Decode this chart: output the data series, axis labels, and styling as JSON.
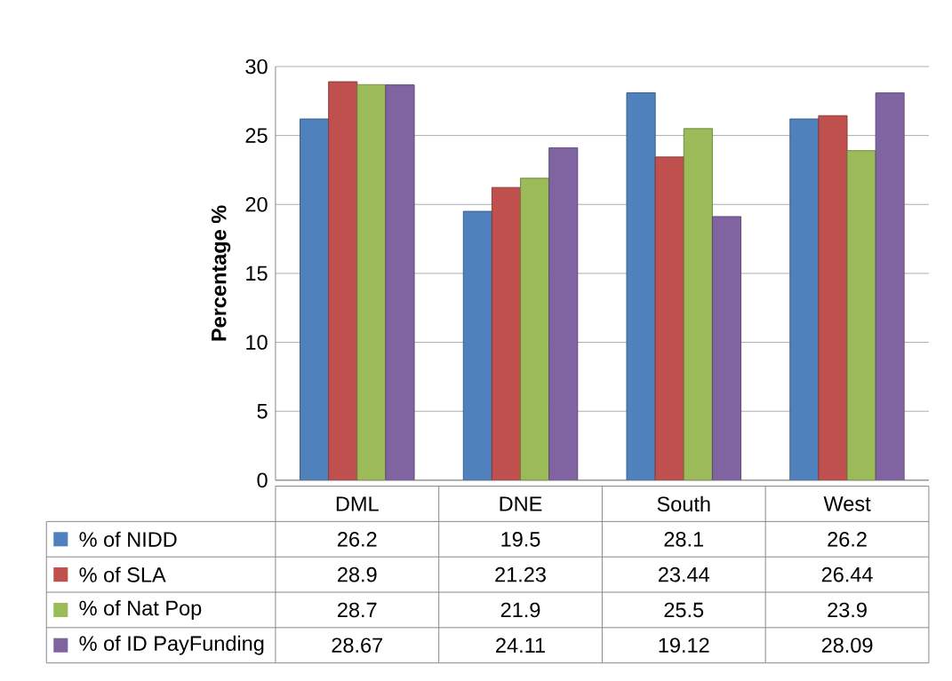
{
  "chart_data": {
    "type": "bar",
    "ylabel": "Percentage %",
    "categories": [
      "DML",
      "DNE",
      "South",
      "West"
    ],
    "series": [
      {
        "name": "% of NIDD",
        "color": "#4f81bd",
        "values": [
          26.2,
          19.5,
          28.1,
          26.2
        ]
      },
      {
        "name": "% of SLA",
        "color": "#c0504d",
        "values": [
          28.9,
          21.23,
          23.44,
          26.44
        ]
      },
      {
        "name": "% of Nat Pop",
        "color": "#9bbb59",
        "values": [
          28.7,
          21.9,
          25.5,
          23.9
        ]
      },
      {
        "name": "% of ID PayFunding",
        "color": "#8064a2",
        "values": [
          28.67,
          24.11,
          19.12,
          28.09
        ]
      }
    ],
    "ylim": [
      0,
      30
    ],
    "yticks": [
      0,
      5,
      10,
      15,
      20,
      25,
      30
    ],
    "grid": "y",
    "legend": "bottom",
    "data_labels": true
  }
}
